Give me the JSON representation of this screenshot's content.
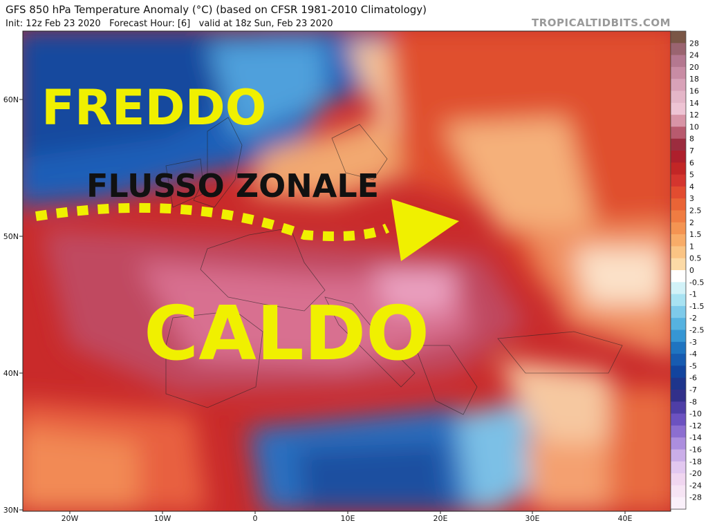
{
  "header": {
    "title": "GFS 850 hPa Temperature Anomaly (°C) (based on CFSR 1981-2010 Climatology)",
    "subtitle": "Init: 12z Feb 23 2020   Forecast Hour: [6]   valid at 18z Sun, Feb 23 2020",
    "watermark": "TROPICALTIDBITS.COM"
  },
  "map": {
    "lat_labels": [
      "60N",
      "50N",
      "40N",
      "30N"
    ],
    "lon_labels": [
      "20W",
      "10W",
      "0",
      "10E",
      "20E",
      "30E",
      "40E"
    ],
    "annotations": {
      "cold": "FREDDO",
      "flow": "FLUSSO ZONALE",
      "warm": "CALDO"
    }
  },
  "colorbar": {
    "labels": [
      "28",
      "24",
      "20",
      "18",
      "16",
      "14",
      "12",
      "10",
      "8",
      "7",
      "6",
      "5",
      "4",
      "3",
      "2.5",
      "2",
      "1.5",
      "1",
      "0.5",
      "0",
      "-0.5",
      "-1",
      "-1.5",
      "-2",
      "-2.5",
      "-3",
      "-4",
      "-5",
      "-6",
      "-7",
      "-8",
      "-10",
      "-12",
      "-14",
      "-16",
      "-18",
      "-20",
      "-24",
      "-28"
    ]
  }
}
